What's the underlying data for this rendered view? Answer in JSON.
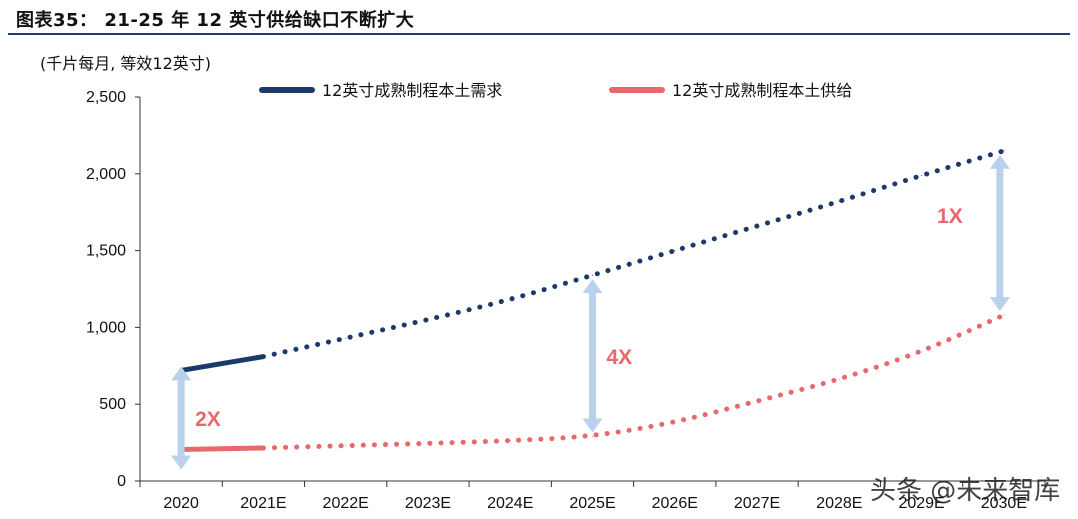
{
  "title": "图表35：  21-25 年 12 英寸供给缺口不断扩大",
  "unit_label": "(千片每月, 等效12英寸)",
  "watermark": "头条 @未来智库",
  "colors": {
    "demand": "#1b3a6b",
    "supply": "#e8686b",
    "arrow": "#b9d1ea",
    "annotation": "#e8686b"
  },
  "chart_data": {
    "type": "line",
    "categories": [
      "2020",
      "2021E",
      "2022E",
      "2023E",
      "2024E",
      "2025E",
      "2026E",
      "2027E",
      "2028E",
      "2029E",
      "2030E"
    ],
    "ylim": [
      0,
      2500
    ],
    "yticks": [
      0,
      500,
      1000,
      1500,
      2000,
      2500
    ],
    "ytick_labels": [
      "0",
      "500",
      "1,000",
      "1,500",
      "2,000",
      "2,500"
    ],
    "grid": false,
    "legend_position": "top",
    "series": [
      {
        "name": "12英寸成熟制程本土需求",
        "values": [
          720,
          810,
          930,
          1050,
          1180,
          1340,
          1500,
          1660,
          1820,
          1990,
          2150
        ],
        "style": "solid-then-dotted"
      },
      {
        "name": "12英寸成熟制程本土供给",
        "values": [
          205,
          215,
          230,
          245,
          262,
          290,
          380,
          520,
          660,
          840,
          1080
        ],
        "style": "solid-then-dotted"
      }
    ],
    "annotations": [
      {
        "text": "2X",
        "x": "2020"
      },
      {
        "text": "4X",
        "x": "2025E"
      },
      {
        "text": "1X",
        "x": "2030E"
      }
    ]
  }
}
